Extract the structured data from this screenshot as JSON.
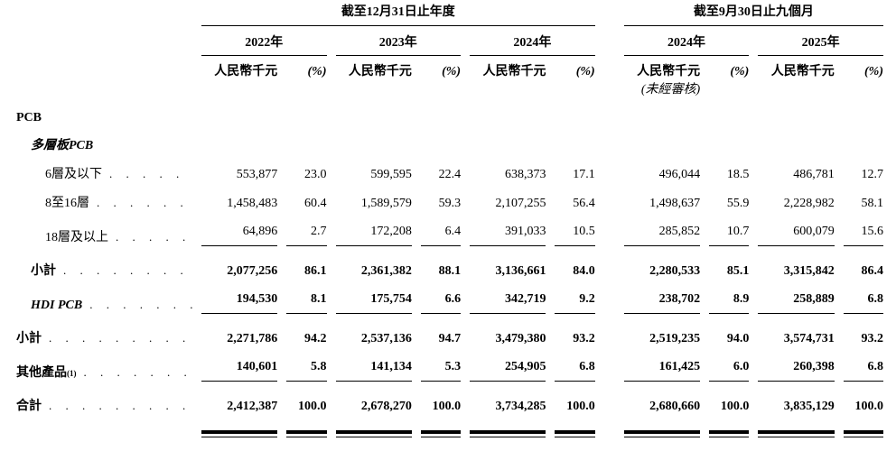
{
  "page": {
    "background": "#ffffff",
    "text_color": "#000000"
  },
  "table": {
    "group_headers": [
      {
        "label": "截至12月31日止年度"
      },
      {
        "label": "截至9月30日止九個月"
      }
    ],
    "year_headers": [
      "2022年",
      "2023年",
      "2024年",
      "2024年",
      "2025年"
    ],
    "unit_header": "人民幣千元",
    "pct_header": "(%)",
    "unaudited_note": "(未經審核)",
    "leader_dots": ". . . . . . . . . . . . . . . . . . . . . . . .",
    "rows": [
      {
        "label": "PCB",
        "indent": 0,
        "bold": true,
        "values": null
      },
      {
        "label": "多層板PCB",
        "indent": 1,
        "bold": true,
        "italic": true,
        "values": null
      },
      {
        "label": "6層及以下",
        "indent": 2,
        "values": [
          [
            "553,877",
            "23.0"
          ],
          [
            "599,595",
            "22.4"
          ],
          [
            "638,373",
            "17.1"
          ],
          [
            "496,044",
            "18.5"
          ],
          [
            "486,781",
            "12.7"
          ]
        ]
      },
      {
        "label": "8至16層",
        "indent": 2,
        "values": [
          [
            "1,458,483",
            "60.4"
          ],
          [
            "1,589,579",
            "59.3"
          ],
          [
            "2,107,255",
            "56.4"
          ],
          [
            "1,498,637",
            "55.9"
          ],
          [
            "2,228,982",
            "58.1"
          ]
        ]
      },
      {
        "label": "18層及以上",
        "indent": 2,
        "rule_after": true,
        "values": [
          [
            "64,896",
            "2.7"
          ],
          [
            "172,208",
            "6.4"
          ],
          [
            "391,033",
            "10.5"
          ],
          [
            "285,852",
            "10.7"
          ],
          [
            "600,079",
            "15.6"
          ]
        ]
      },
      {
        "label": "小計",
        "indent": 1,
        "bold": true,
        "bold_values": true,
        "space": "md",
        "values": [
          [
            "2,077,256",
            "86.1"
          ],
          [
            "2,361,382",
            "88.1"
          ],
          [
            "3,136,661",
            "84.0"
          ],
          [
            "2,280,533",
            "85.1"
          ],
          [
            "3,315,842",
            "86.4"
          ]
        ]
      },
      {
        "label": "HDI PCB",
        "indent": 1,
        "bold": true,
        "italic": true,
        "bold_values": true,
        "rule_after": true,
        "values": [
          [
            "194,530",
            "8.1"
          ],
          [
            "175,754",
            "6.6"
          ],
          [
            "342,719",
            "9.2"
          ],
          [
            "238,702",
            "8.9"
          ],
          [
            "258,889",
            "6.8"
          ]
        ]
      },
      {
        "label": "小計",
        "indent": 0,
        "bold": true,
        "bold_values": true,
        "space": "md",
        "values": [
          [
            "2,271,786",
            "94.2"
          ],
          [
            "2,537,136",
            "94.7"
          ],
          [
            "3,479,380",
            "93.2"
          ],
          [
            "2,519,235",
            "94.0"
          ],
          [
            "3,574,731",
            "93.2"
          ]
        ]
      },
      {
        "label": "其他產品",
        "sup": "(1)",
        "indent": 0,
        "bold": true,
        "bold_values": true,
        "rule_after": true,
        "values": [
          [
            "140,601",
            "5.8"
          ],
          [
            "141,134",
            "5.3"
          ],
          [
            "254,905",
            "6.8"
          ],
          [
            "161,425",
            "6.0"
          ],
          [
            "260,398",
            "6.8"
          ]
        ]
      },
      {
        "label": "合計",
        "indent": 0,
        "bold": true,
        "bold_values": true,
        "space": "md",
        "double_rule_after": true,
        "values": [
          [
            "2,412,387",
            "100.0"
          ],
          [
            "2,678,270",
            "100.0"
          ],
          [
            "3,734,285",
            "100.0"
          ],
          [
            "2,680,660",
            "100.0"
          ],
          [
            "3,835,129",
            "100.0"
          ]
        ]
      }
    ]
  }
}
